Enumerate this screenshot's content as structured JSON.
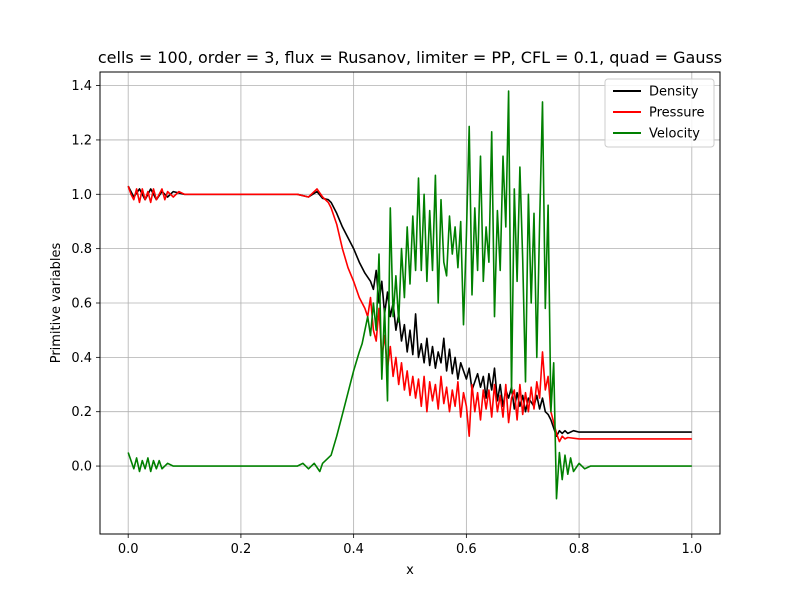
{
  "chart_data": {
    "type": "line",
    "title": "cells = 100, order = 3, flux = Rusanov, limiter = PP, CFL = 0.1, quad = Gauss",
    "xlabel": "x",
    "ylabel": "Primitive variables",
    "xlim": [
      -0.05,
      1.05
    ],
    "ylim": [
      -0.25,
      1.45
    ],
    "xticks": [
      0.0,
      0.2,
      0.4,
      0.6,
      0.8,
      1.0
    ],
    "xtick_labels": [
      "0.0",
      "0.2",
      "0.4",
      "0.6",
      "0.8",
      "1.0"
    ],
    "yticks": [
      0.0,
      0.2,
      0.4,
      0.6,
      0.8,
      1.0,
      1.2,
      1.4
    ],
    "ytick_labels": [
      "0.0",
      "0.2",
      "0.4",
      "0.6",
      "0.8",
      "1.0",
      "1.2",
      "1.4"
    ],
    "grid": true,
    "legend_position": "top-right",
    "series": [
      {
        "name": "Density",
        "color": "#000000",
        "points": [
          [
            0.0,
            1.03
          ],
          [
            0.01,
            0.99
          ],
          [
            0.02,
            1.02
          ],
          [
            0.03,
            0.98
          ],
          [
            0.04,
            1.02
          ],
          [
            0.05,
            0.98
          ],
          [
            0.06,
            1.01
          ],
          [
            0.07,
            0.99
          ],
          [
            0.08,
            1.01
          ],
          [
            0.1,
            1.0
          ],
          [
            0.2,
            1.0
          ],
          [
            0.3,
            1.0
          ],
          [
            0.32,
            0.99
          ],
          [
            0.335,
            1.01
          ],
          [
            0.345,
            0.985
          ],
          [
            0.355,
            0.98
          ],
          [
            0.36,
            0.97
          ],
          [
            0.37,
            0.93
          ],
          [
            0.38,
            0.88
          ],
          [
            0.39,
            0.84
          ],
          [
            0.4,
            0.8
          ],
          [
            0.41,
            0.75
          ],
          [
            0.42,
            0.71
          ],
          [
            0.43,
            0.68
          ],
          [
            0.435,
            0.65
          ],
          [
            0.44,
            0.72
          ],
          [
            0.445,
            0.6
          ],
          [
            0.45,
            0.68
          ],
          [
            0.455,
            0.56
          ],
          [
            0.46,
            0.64
          ],
          [
            0.465,
            0.55
          ],
          [
            0.47,
            0.6
          ],
          [
            0.475,
            0.5
          ],
          [
            0.48,
            0.56
          ],
          [
            0.485,
            0.46
          ],
          [
            0.49,
            0.52
          ],
          [
            0.495,
            0.42
          ],
          [
            0.5,
            0.5
          ],
          [
            0.505,
            0.41
          ],
          [
            0.51,
            0.56
          ],
          [
            0.515,
            0.4
          ],
          [
            0.52,
            0.45
          ],
          [
            0.525,
            0.38
          ],
          [
            0.53,
            0.47
          ],
          [
            0.535,
            0.37
          ],
          [
            0.54,
            0.44
          ],
          [
            0.545,
            0.36
          ],
          [
            0.55,
            0.42
          ],
          [
            0.555,
            0.38
          ],
          [
            0.56,
            0.47
          ],
          [
            0.565,
            0.35
          ],
          [
            0.57,
            0.43
          ],
          [
            0.575,
            0.34
          ],
          [
            0.58,
            0.4
          ],
          [
            0.585,
            0.32
          ],
          [
            0.59,
            0.38
          ],
          [
            0.6,
            0.32
          ],
          [
            0.605,
            0.36
          ],
          [
            0.61,
            0.28
          ],
          [
            0.62,
            0.34
          ],
          [
            0.625,
            0.29
          ],
          [
            0.63,
            0.33
          ],
          [
            0.635,
            0.25
          ],
          [
            0.64,
            0.34
          ],
          [
            0.645,
            0.28
          ],
          [
            0.65,
            0.36
          ],
          [
            0.655,
            0.24
          ],
          [
            0.66,
            0.3
          ],
          [
            0.665,
            0.22
          ],
          [
            0.67,
            0.28
          ],
          [
            0.675,
            0.25
          ],
          [
            0.68,
            0.29
          ],
          [
            0.685,
            0.21
          ],
          [
            0.69,
            0.27
          ],
          [
            0.695,
            0.22
          ],
          [
            0.7,
            0.26
          ],
          [
            0.705,
            0.2
          ],
          [
            0.71,
            0.25
          ],
          [
            0.72,
            0.22
          ],
          [
            0.725,
            0.26
          ],
          [
            0.73,
            0.21
          ],
          [
            0.735,
            0.25
          ],
          [
            0.74,
            0.2
          ],
          [
            0.745,
            0.19
          ],
          [
            0.75,
            0.17
          ],
          [
            0.755,
            0.14
          ],
          [
            0.76,
            0.11
          ],
          [
            0.765,
            0.13
          ],
          [
            0.77,
            0.12
          ],
          [
            0.775,
            0.13
          ],
          [
            0.78,
            0.12
          ],
          [
            0.79,
            0.13
          ],
          [
            0.8,
            0.125
          ],
          [
            1.0,
            0.125
          ]
        ]
      },
      {
        "name": "Pressure",
        "color": "#ff0000",
        "points": [
          [
            0.0,
            1.03
          ],
          [
            0.005,
            1.0
          ],
          [
            0.01,
            0.98
          ],
          [
            0.015,
            1.02
          ],
          [
            0.02,
            0.97
          ],
          [
            0.025,
            1.02
          ],
          [
            0.03,
            0.98
          ],
          [
            0.035,
            1.01
          ],
          [
            0.04,
            0.97
          ],
          [
            0.045,
            1.02
          ],
          [
            0.05,
            0.98
          ],
          [
            0.06,
            1.02
          ],
          [
            0.065,
            0.98
          ],
          [
            0.07,
            1.01
          ],
          [
            0.08,
            0.99
          ],
          [
            0.09,
            1.01
          ],
          [
            0.1,
            1.0
          ],
          [
            0.2,
            1.0
          ],
          [
            0.3,
            1.0
          ],
          [
            0.32,
            0.99
          ],
          [
            0.335,
            1.02
          ],
          [
            0.345,
            0.99
          ],
          [
            0.355,
            0.97
          ],
          [
            0.36,
            0.95
          ],
          [
            0.37,
            0.89
          ],
          [
            0.38,
            0.8
          ],
          [
            0.39,
            0.73
          ],
          [
            0.4,
            0.68
          ],
          [
            0.41,
            0.62
          ],
          [
            0.42,
            0.58
          ],
          [
            0.425,
            0.55
          ],
          [
            0.43,
            0.62
          ],
          [
            0.435,
            0.5
          ],
          [
            0.44,
            0.46
          ],
          [
            0.445,
            0.58
          ],
          [
            0.45,
            0.4
          ],
          [
            0.455,
            0.48
          ],
          [
            0.46,
            0.36
          ],
          [
            0.465,
            0.44
          ],
          [
            0.47,
            0.33
          ],
          [
            0.475,
            0.4
          ],
          [
            0.48,
            0.3
          ],
          [
            0.485,
            0.38
          ],
          [
            0.49,
            0.28
          ],
          [
            0.495,
            0.35
          ],
          [
            0.5,
            0.26
          ],
          [
            0.505,
            0.33
          ],
          [
            0.51,
            0.25
          ],
          [
            0.515,
            0.32
          ],
          [
            0.52,
            0.22
          ],
          [
            0.525,
            0.33
          ],
          [
            0.53,
            0.2
          ],
          [
            0.535,
            0.31
          ],
          [
            0.54,
            0.24
          ],
          [
            0.545,
            0.3
          ],
          [
            0.55,
            0.21
          ],
          [
            0.555,
            0.33
          ],
          [
            0.56,
            0.23
          ],
          [
            0.565,
            0.29
          ],
          [
            0.57,
            0.2
          ],
          [
            0.575,
            0.28
          ],
          [
            0.58,
            0.22
          ],
          [
            0.585,
            0.31
          ],
          [
            0.59,
            0.18
          ],
          [
            0.595,
            0.27
          ],
          [
            0.6,
            0.22
          ],
          [
            0.605,
            0.11
          ],
          [
            0.61,
            0.3
          ],
          [
            0.615,
            0.2
          ],
          [
            0.62,
            0.27
          ],
          [
            0.625,
            0.17
          ],
          [
            0.63,
            0.28
          ],
          [
            0.635,
            0.21
          ],
          [
            0.64,
            0.28
          ],
          [
            0.645,
            0.18
          ],
          [
            0.65,
            0.3
          ],
          [
            0.655,
            0.2
          ],
          [
            0.66,
            0.26
          ],
          [
            0.665,
            0.18
          ],
          [
            0.67,
            0.3
          ],
          [
            0.675,
            0.16
          ],
          [
            0.68,
            0.25
          ],
          [
            0.685,
            0.28
          ],
          [
            0.69,
            0.17
          ],
          [
            0.695,
            0.3
          ],
          [
            0.7,
            0.19
          ],
          [
            0.705,
            0.27
          ],
          [
            0.71,
            0.2
          ],
          [
            0.715,
            0.29
          ],
          [
            0.72,
            0.21
          ],
          [
            0.725,
            0.31
          ],
          [
            0.73,
            0.25
          ],
          [
            0.735,
            0.42
          ],
          [
            0.74,
            0.28
          ],
          [
            0.745,
            0.33
          ],
          [
            0.75,
            0.2
          ],
          [
            0.755,
            0.16
          ],
          [
            0.76,
            0.12
          ],
          [
            0.765,
            0.09
          ],
          [
            0.77,
            0.11
          ],
          [
            0.775,
            0.1
          ],
          [
            0.78,
            0.105
          ],
          [
            0.8,
            0.1
          ],
          [
            1.0,
            0.1
          ]
        ]
      },
      {
        "name": "Velocity",
        "color": "#008000",
        "points": [
          [
            0.0,
            0.05
          ],
          [
            0.005,
            0.02
          ],
          [
            0.01,
            -0.01
          ],
          [
            0.015,
            0.03
          ],
          [
            0.02,
            -0.02
          ],
          [
            0.025,
            0.02
          ],
          [
            0.03,
            -0.01
          ],
          [
            0.035,
            0.03
          ],
          [
            0.04,
            -0.02
          ],
          [
            0.045,
            0.02
          ],
          [
            0.05,
            -0.01
          ],
          [
            0.055,
            0.02
          ],
          [
            0.06,
            -0.01
          ],
          [
            0.07,
            0.01
          ],
          [
            0.08,
            0.0
          ],
          [
            0.1,
            0.0
          ],
          [
            0.2,
            0.0
          ],
          [
            0.3,
            0.0
          ],
          [
            0.31,
            0.01
          ],
          [
            0.32,
            -0.01
          ],
          [
            0.33,
            0.01
          ],
          [
            0.34,
            -0.02
          ],
          [
            0.345,
            0.01
          ],
          [
            0.35,
            0.02
          ],
          [
            0.36,
            0.04
          ],
          [
            0.37,
            0.11
          ],
          [
            0.38,
            0.19
          ],
          [
            0.39,
            0.27
          ],
          [
            0.4,
            0.35
          ],
          [
            0.41,
            0.42
          ],
          [
            0.415,
            0.45
          ],
          [
            0.42,
            0.5
          ],
          [
            0.425,
            0.55
          ],
          [
            0.43,
            0.48
          ],
          [
            0.435,
            0.6
          ],
          [
            0.44,
            0.5
          ],
          [
            0.445,
            0.78
          ],
          [
            0.45,
            0.32
          ],
          [
            0.455,
            0.58
          ],
          [
            0.46,
            0.24
          ],
          [
            0.465,
            0.95
          ],
          [
            0.47,
            0.55
          ],
          [
            0.475,
            0.7
          ],
          [
            0.48,
            0.53
          ],
          [
            0.485,
            0.8
          ],
          [
            0.49,
            0.62
          ],
          [
            0.495,
            0.88
          ],
          [
            0.5,
            0.67
          ],
          [
            0.505,
            0.92
          ],
          [
            0.51,
            0.72
          ],
          [
            0.515,
            1.06
          ],
          [
            0.52,
            0.72
          ],
          [
            0.525,
            1.0
          ],
          [
            0.53,
            0.68
          ],
          [
            0.535,
            0.94
          ],
          [
            0.54,
            0.72
          ],
          [
            0.545,
            1.07
          ],
          [
            0.55,
            0.6
          ],
          [
            0.555,
            0.98
          ],
          [
            0.56,
            0.75
          ],
          [
            0.565,
            0.7
          ],
          [
            0.57,
            0.92
          ],
          [
            0.575,
            0.78
          ],
          [
            0.58,
            0.88
          ],
          [
            0.585,
            0.73
          ],
          [
            0.59,
            0.9
          ],
          [
            0.595,
            0.52
          ],
          [
            0.6,
            0.85
          ],
          [
            0.605,
            1.25
          ],
          [
            0.61,
            0.63
          ],
          [
            0.615,
            0.95
          ],
          [
            0.62,
            0.72
          ],
          [
            0.625,
            1.14
          ],
          [
            0.63,
            0.68
          ],
          [
            0.635,
            0.88
          ],
          [
            0.64,
            0.75
          ],
          [
            0.645,
            1.23
          ],
          [
            0.65,
            0.55
          ],
          [
            0.655,
            0.94
          ],
          [
            0.66,
            0.72
          ],
          [
            0.665,
            1.14
          ],
          [
            0.67,
            0.88
          ],
          [
            0.675,
            1.38
          ],
          [
            0.68,
            0.27
          ],
          [
            0.685,
            1.02
          ],
          [
            0.69,
            0.68
          ],
          [
            0.695,
            1.1
          ],
          [
            0.7,
            0.76
          ],
          [
            0.705,
            0.31
          ],
          [
            0.71,
            1.0
          ],
          [
            0.715,
            0.6
          ],
          [
            0.72,
            0.93
          ],
          [
            0.725,
            0.4
          ],
          [
            0.73,
            0.89
          ],
          [
            0.735,
            1.34
          ],
          [
            0.74,
            0.58
          ],
          [
            0.745,
            0.96
          ],
          [
            0.75,
            0.2
          ],
          [
            0.755,
            0.38
          ],
          [
            0.76,
            -0.12
          ],
          [
            0.765,
            0.05
          ],
          [
            0.77,
            -0.05
          ],
          [
            0.775,
            0.04
          ],
          [
            0.78,
            -0.03
          ],
          [
            0.785,
            0.03
          ],
          [
            0.79,
            -0.02
          ],
          [
            0.8,
            0.01
          ],
          [
            0.81,
            -0.01
          ],
          [
            0.82,
            0.0
          ],
          [
            1.0,
            0.0
          ]
        ]
      }
    ]
  }
}
